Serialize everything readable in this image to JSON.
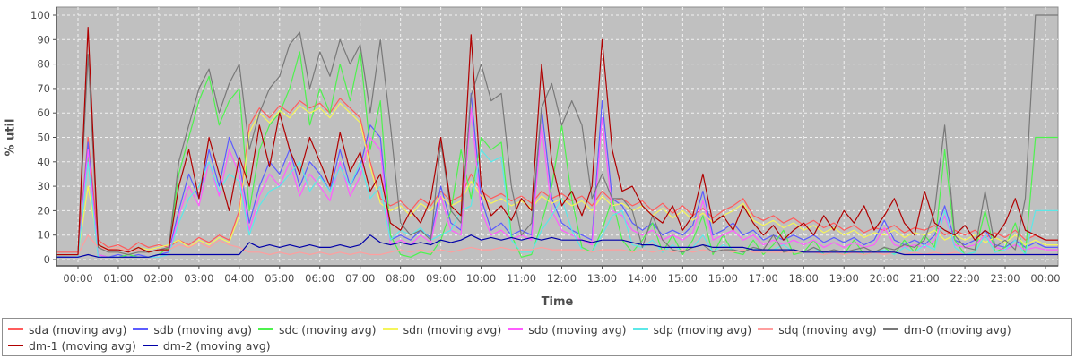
{
  "chart_data": {
    "type": "line",
    "title": "",
    "xlabel": "Time",
    "ylabel": "% util",
    "ylim": [
      0,
      100
    ],
    "y_ticks": [
      0,
      10,
      20,
      30,
      40,
      50,
      60,
      70,
      80,
      90,
      100
    ],
    "x_tick_labels": [
      "00:00",
      "01:00",
      "02:00",
      "03:00",
      "04:00",
      "05:00",
      "06:00",
      "07:00",
      "08:00",
      "09:00",
      "10:00",
      "11:00",
      "12:00",
      "13:00",
      "14:00",
      "15:00",
      "16:00",
      "17:00",
      "18:00",
      "19:00",
      "20:00",
      "21:00",
      "22:00",
      "23:00",
      "00:00"
    ],
    "x_start_hour": 0,
    "x_step_hours": 0.25,
    "plot_bg": "#c0c0c0",
    "grid_color": "#f2f2f2",
    "axis_color": "#4d4d4d",
    "frame_color": "#8c8c8c",
    "legend_position": "bottom",
    "grid": true,
    "series": [
      {
        "name": "sda",
        "label": "sda (moving avg)",
        "color": "#ff5c5c",
        "values": [
          3,
          50,
          8,
          5,
          6,
          4,
          7,
          5,
          6,
          5,
          8,
          6,
          9,
          7,
          10,
          8,
          20,
          55,
          62,
          58,
          63,
          60,
          65,
          62,
          64,
          60,
          66,
          62,
          58,
          40,
          25,
          22,
          24,
          20,
          25,
          22,
          28,
          24,
          26,
          35,
          28,
          25,
          27,
          24,
          26,
          23,
          28,
          25,
          27,
          24,
          26,
          22,
          28,
          24,
          25,
          22,
          24,
          20,
          23,
          19,
          22,
          18,
          21,
          17,
          20,
          22,
          25,
          18,
          16,
          18,
          15,
          17,
          14,
          16,
          13,
          15,
          12,
          14,
          11,
          13,
          12,
          14,
          11,
          13,
          12,
          14,
          10,
          12,
          10,
          12,
          9,
          11,
          9,
          12,
          8,
          10,
          8
        ]
      },
      {
        "name": "sdb",
        "label": "sdb (moving avg)",
        "color": "#5c5cff",
        "values": [
          1,
          48,
          2,
          1,
          2,
          1,
          2,
          1,
          2,
          3,
          20,
          35,
          25,
          45,
          30,
          50,
          40,
          15,
          30,
          40,
          35,
          45,
          30,
          40,
          35,
          28,
          45,
          30,
          38,
          55,
          50,
          8,
          10,
          8,
          12,
          9,
          30,
          15,
          12,
          68,
          25,
          12,
          15,
          10,
          12,
          10,
          62,
          25,
          15,
          12,
          10,
          8,
          65,
          25,
          22,
          15,
          12,
          15,
          10,
          12,
          10,
          14,
          28,
          10,
          12,
          15,
          10,
          12,
          8,
          10,
          8,
          10,
          8,
          10,
          7,
          9,
          7,
          9,
          6,
          8,
          16,
          8,
          6,
          8,
          6,
          10,
          22,
          8,
          6,
          8,
          12,
          6,
          5,
          8,
          5,
          7,
          5
        ]
      },
      {
        "name": "sdc",
        "label": "sdc (moving avg)",
        "color": "#4ef24e",
        "values": [
          2,
          42,
          2,
          1,
          1,
          2,
          1,
          1,
          2,
          5,
          35,
          50,
          65,
          75,
          55,
          65,
          70,
          20,
          45,
          55,
          60,
          70,
          85,
          55,
          70,
          60,
          80,
          65,
          85,
          45,
          65,
          10,
          2,
          1,
          3,
          2,
          8,
          20,
          45,
          25,
          50,
          45,
          48,
          10,
          1,
          2,
          15,
          30,
          55,
          25,
          5,
          3,
          12,
          25,
          8,
          3,
          8,
          15,
          3,
          10,
          2,
          8,
          18,
          2,
          10,
          3,
          2,
          8,
          2,
          6,
          12,
          2,
          3,
          8,
          2,
          3,
          2,
          8,
          2,
          3,
          5,
          2,
          8,
          3,
          10,
          5,
          45,
          8,
          2,
          3,
          20,
          3,
          5,
          15,
          2,
          50,
          50
        ]
      },
      {
        "name": "sdn",
        "label": "sdn (moving avg)",
        "color": "#f5f55a",
        "values": [
          2,
          30,
          6,
          4,
          5,
          3,
          5,
          4,
          5,
          6,
          8,
          5,
          8,
          6,
          9,
          7,
          18,
          52,
          60,
          56,
          61,
          58,
          63,
          60,
          62,
          58,
          64,
          60,
          56,
          38,
          23,
          20,
          22,
          18,
          23,
          20,
          26,
          22,
          24,
          32,
          26,
          23,
          25,
          22,
          24,
          21,
          26,
          23,
          25,
          22,
          24,
          20,
          26,
          22,
          23,
          20,
          22,
          18,
          21,
          17,
          20,
          16,
          19,
          15,
          18,
          20,
          23,
          16,
          14,
          16,
          13,
          15,
          12,
          14,
          11,
          13,
          10,
          12,
          9,
          11,
          10,
          12,
          9,
          11,
          10,
          12,
          8,
          10,
          8,
          10,
          7,
          9,
          7,
          10,
          6,
          8,
          6
        ]
      },
      {
        "name": "sdo",
        "label": "sdo (moving avg)",
        "color": "#ff5cff",
        "values": [
          1,
          45,
          2,
          1,
          1,
          1,
          1,
          1,
          1,
          2,
          18,
          30,
          22,
          40,
          26,
          45,
          35,
          12,
          26,
          35,
          30,
          40,
          26,
          35,
          30,
          24,
          40,
          26,
          34,
          50,
          45,
          6,
          8,
          6,
          10,
          7,
          26,
          12,
          10,
          62,
          20,
          10,
          12,
          8,
          10,
          8,
          55,
          20,
          12,
          10,
          8,
          6,
          58,
          20,
          18,
          12,
          10,
          12,
          8,
          10,
          8,
          11,
          24,
          8,
          10,
          12,
          8,
          10,
          6,
          8,
          6,
          8,
          6,
          8,
          5,
          7,
          5,
          7,
          5,
          6,
          13,
          6,
          5,
          6,
          5,
          8,
          18,
          6,
          5,
          6,
          10,
          5,
          4,
          6,
          4,
          5,
          4
        ]
      },
      {
        "name": "sdp",
        "label": "sdp (moving avg)",
        "color": "#5ce8e8",
        "values": [
          1,
          40,
          1,
          1,
          1,
          1,
          1,
          1,
          1,
          2,
          15,
          25,
          30,
          40,
          28,
          35,
          32,
          10,
          22,
          28,
          30,
          35,
          40,
          28,
          34,
          28,
          38,
          30,
          40,
          25,
          30,
          8,
          12,
          10,
          13,
          8,
          10,
          12,
          20,
          22,
          45,
          40,
          42,
          8,
          3,
          3,
          12,
          18,
          25,
          12,
          4,
          3,
          10,
          18,
          20,
          6,
          5,
          8,
          3,
          6,
          3,
          5,
          10,
          3,
          6,
          4,
          3,
          5,
          3,
          4,
          6,
          3,
          3,
          5,
          2,
          3,
          2,
          4,
          2,
          3,
          4,
          2,
          5,
          3,
          6,
          4,
          20,
          5,
          2,
          3,
          10,
          3,
          4,
          8,
          2,
          20,
          20
        ]
      },
      {
        "name": "sdq",
        "label": "sdq (moving avg)",
        "color": "#ff9e9e",
        "values": [
          2,
          10,
          5,
          4,
          5,
          3,
          4,
          3,
          4,
          4,
          6,
          5,
          7,
          5,
          8,
          6,
          5,
          3,
          3,
          2,
          3,
          2,
          3,
          2,
          3,
          2,
          3,
          2,
          3,
          2,
          2,
          3,
          4,
          3,
          4,
          3,
          4,
          3,
          4,
          5,
          4,
          4,
          5,
          4,
          4,
          4,
          5,
          4,
          4,
          4,
          4,
          3,
          4,
          4,
          4,
          3,
          4,
          3,
          4,
          3,
          4,
          3,
          4,
          3,
          4,
          3,
          4,
          3,
          3,
          3,
          3,
          3,
          3,
          3,
          2,
          3,
          2,
          3,
          2,
          3,
          2,
          3,
          2,
          3,
          2,
          3,
          2,
          3,
          2,
          2,
          2,
          2,
          2,
          2,
          2,
          2,
          2
        ]
      },
      {
        "name": "dm-0",
        "label": "dm-0 (moving avg)",
        "color": "#787878",
        "values": [
          2,
          84,
          5,
          3,
          3,
          2,
          3,
          3,
          4,
          5,
          40,
          55,
          70,
          78,
          60,
          72,
          80,
          45,
          60,
          70,
          75,
          88,
          93,
          70,
          85,
          75,
          90,
          80,
          88,
          60,
          90,
          55,
          15,
          10,
          12,
          8,
          48,
          20,
          15,
          67,
          80,
          65,
          68,
          30,
          10,
          15,
          62,
          72,
          55,
          65,
          55,
          25,
          35,
          25,
          25,
          20,
          5,
          18,
          8,
          4,
          3,
          5,
          6,
          3,
          4,
          4,
          3,
          5,
          4,
          10,
          3,
          4,
          3,
          5,
          3,
          4,
          3,
          4,
          5,
          3,
          5,
          4,
          6,
          5,
          8,
          20,
          55,
          10,
          5,
          4,
          28,
          5,
          8,
          4,
          25,
          100,
          100
        ]
      },
      {
        "name": "dm-1",
        "label": "dm-1 (moving avg)",
        "color": "#b00000",
        "values": [
          2,
          95,
          6,
          4,
          4,
          3,
          5,
          3,
          4,
          4,
          30,
          45,
          25,
          50,
          35,
          20,
          42,
          30,
          55,
          38,
          60,
          45,
          35,
          50,
          40,
          30,
          52,
          36,
          44,
          28,
          35,
          15,
          12,
          20,
          15,
          25,
          50,
          22,
          18,
          92,
          30,
          18,
          22,
          16,
          25,
          20,
          80,
          40,
          22,
          28,
          18,
          30,
          90,
          45,
          28,
          30,
          22,
          18,
          15,
          22,
          12,
          18,
          35,
          15,
          18,
          12,
          22,
          15,
          10,
          14,
          8,
          12,
          15,
          10,
          18,
          12,
          20,
          15,
          22,
          12,
          18,
          25,
          15,
          10,
          28,
          15,
          12,
          10,
          14,
          8,
          12,
          9,
          15,
          25,
          12,
          10,
          8
        ]
      },
      {
        "name": "dm-2",
        "label": "dm-2 (moving avg)",
        "color": "#0000a8",
        "values": [
          1,
          2,
          1,
          1,
          1,
          1,
          1,
          1,
          2,
          2,
          2,
          2,
          2,
          2,
          2,
          2,
          2,
          7,
          5,
          6,
          5,
          6,
          5,
          6,
          5,
          5,
          6,
          5,
          6,
          10,
          7,
          6,
          7,
          6,
          7,
          6,
          8,
          7,
          8,
          10,
          8,
          9,
          8,
          9,
          8,
          9,
          8,
          9,
          8,
          8,
          8,
          7,
          8,
          8,
          8,
          7,
          6,
          6,
          5,
          5,
          5,
          5,
          6,
          5,
          5,
          5,
          5,
          4,
          4,
          4,
          4,
          4,
          3,
          3,
          3,
          3,
          3,
          3,
          3,
          3,
          3,
          3,
          2,
          2,
          2,
          2,
          2,
          2,
          2,
          2,
          2,
          2,
          2,
          2,
          2,
          2,
          2
        ]
      }
    ]
  }
}
